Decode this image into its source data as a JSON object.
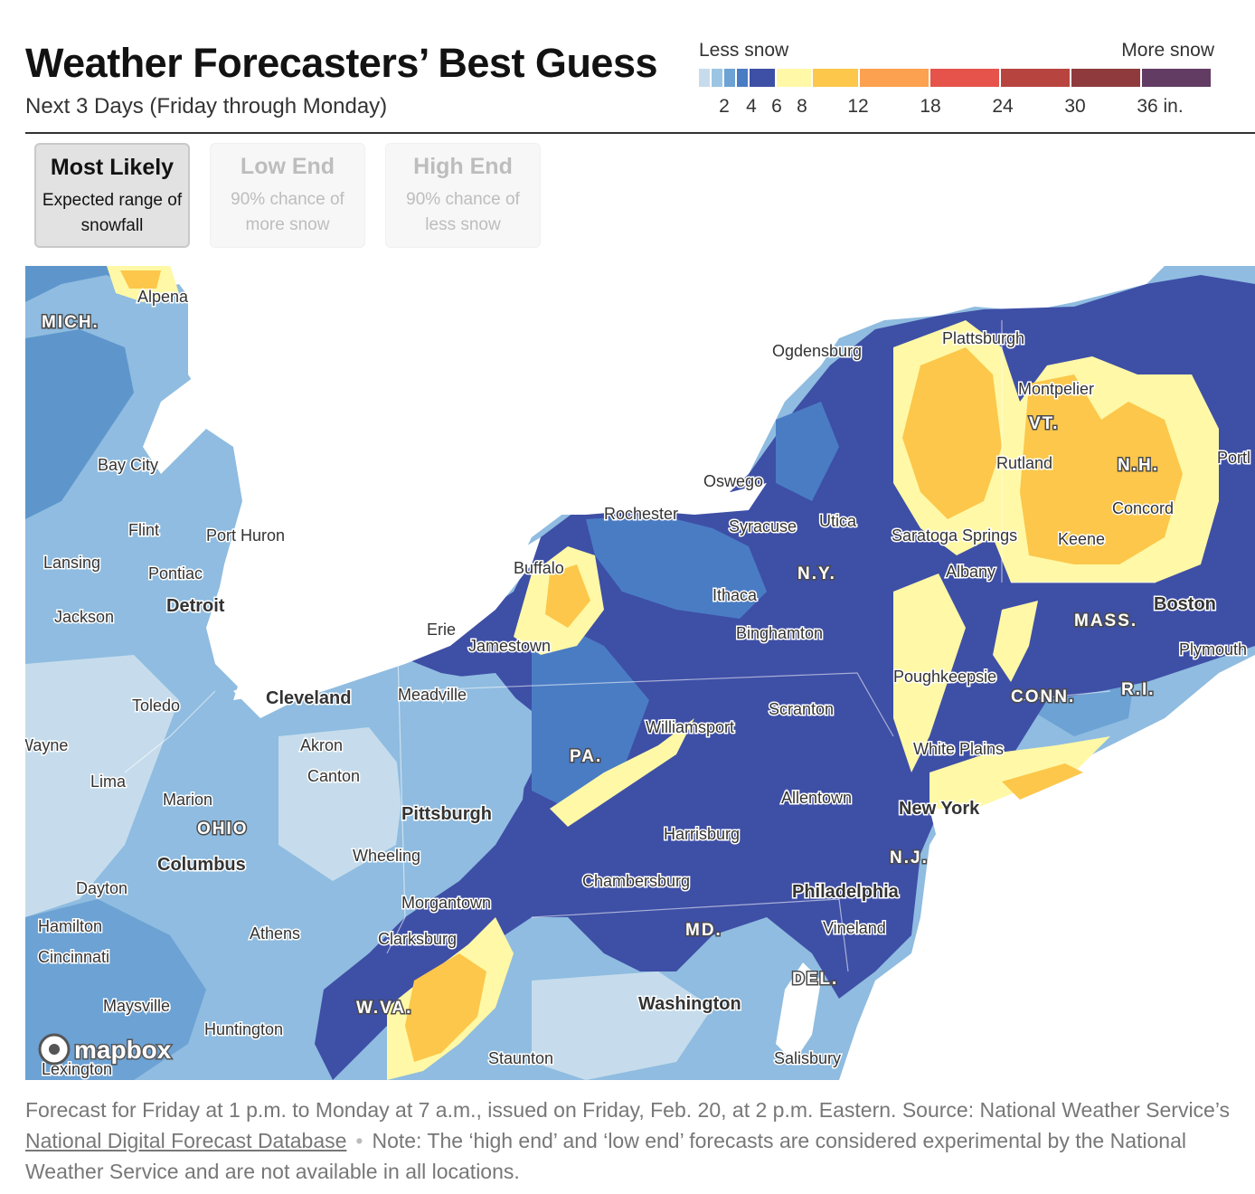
{
  "header": {
    "title": "Weather Forecasters’ Best Guess",
    "subtitle": "Next 3 Days (Friday through Monday)"
  },
  "legend": {
    "less_label": "Less snow",
    "more_label": "More snow",
    "swatches": [
      {
        "color": "#c6dcec"
      },
      {
        "color": "#9cc5e4"
      },
      {
        "color": "#6ca2d4"
      },
      {
        "color": "#4a7cc4"
      },
      {
        "color": "#3e4fa6"
      },
      {
        "color": "#fff8a6"
      },
      {
        "color": "#fcc74a"
      },
      {
        "color": "#fba150"
      },
      {
        "color": "#e5534b"
      },
      {
        "color": "#b8443f"
      },
      {
        "color": "#8f3b3d"
      },
      {
        "color": "#633c64"
      }
    ],
    "ticks": [
      "2",
      "4",
      "6",
      "8",
      "12",
      "18",
      "24",
      "30",
      "36 in."
    ]
  },
  "tabs": [
    {
      "label": "Most Likely",
      "desc": "Expected range of snowfall",
      "active": true
    },
    {
      "label": "Low End",
      "desc": "90% chance of more snow",
      "active": false
    },
    {
      "label": "High End",
      "desc": "90% chance of less snow",
      "active": false
    }
  ],
  "map": {
    "attribution": "mapbox",
    "states": [
      "MICH.",
      "OHIO",
      "PA.",
      "N.Y.",
      "VT.",
      "N.H.",
      "MASS.",
      "CONN.",
      "R.I.",
      "N.J.",
      "DEL.",
      "MD.",
      "W.VA."
    ],
    "cities": [
      "Alpena",
      "Bay City",
      "Flint",
      "Port Huron",
      "Lansing",
      "Pontiac",
      "Detroit",
      "Jackson",
      "Toledo",
      "Wayne",
      "Lima",
      "Marion",
      "Columbus",
      "Dayton",
      "Hamilton",
      "Cincinnati",
      "Maysville",
      "Huntington",
      "Lexington",
      "Athens",
      "Cleveland",
      "Akron",
      "Canton",
      "Pittsburgh",
      "Wheeling",
      "Morgantown",
      "Clarksburg",
      "Staunton",
      "Erie",
      "Meadville",
      "Jamestown",
      "Buffalo",
      "Rochester",
      "Oswego",
      "Syracuse",
      "Utica",
      "Ithaca",
      "Binghamton",
      "Scranton",
      "Williamsport",
      "Allentown",
      "Harrisburg",
      "Chambersburg",
      "Philadelphia",
      "Vineland",
      "Washington",
      "Salisbury",
      "New York",
      "White Plains",
      "Poughkeepsie",
      "Albany",
      "Saratoga Springs",
      "Ogdensburg",
      "Plattsburgh",
      "Montpelier",
      "Rutland",
      "Keene",
      "Concord",
      "Boston",
      "Plymouth",
      "Portl"
    ]
  },
  "caption": {
    "text1": "Forecast for Friday at 1 p.m. to Monday at 7 a.m., issued on Friday, Feb. 20, at 2 p.m. Eastern. Source: National Weather Service’s ",
    "link": "National Digital Forecast Database",
    "dot": "•",
    "text2": "Note: The ‘high end’ and ‘low end’ forecasts are considered experimental by the National Weather Service and are not available in all locations."
  }
}
